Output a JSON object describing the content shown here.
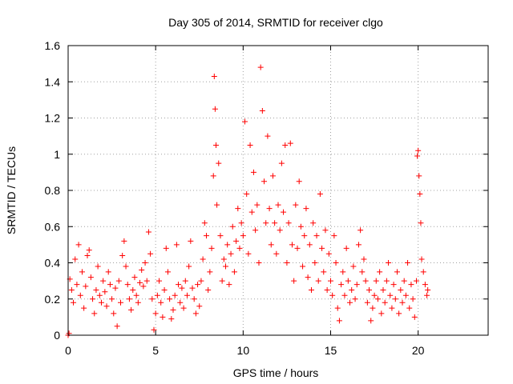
{
  "chart_data": {
    "type": "scatter",
    "title": "Day 305 of 2014, SRMTID for receiver clgo",
    "xlabel": "GPS time / hours",
    "ylabel": "SRMTID / TECUs",
    "xlim": [
      0,
      24
    ],
    "ylim": [
      0,
      1.6
    ],
    "xticks": [
      0,
      5,
      10,
      15,
      20
    ],
    "xtick_labels": [
      "0",
      "5",
      "10",
      "15",
      "20"
    ],
    "yticks": [
      0,
      0.2,
      0.4,
      0.6,
      0.8,
      1,
      1.2,
      1.4,
      1.6
    ],
    "ytick_labels": [
      "0",
      "0.2",
      "0.4",
      "0.6",
      "0.8",
      "1",
      "1.2",
      "1.4",
      "1.6"
    ],
    "grid": true,
    "marker": "plus",
    "color": "#ff0000",
    "series": [
      {
        "name": "SRMTID",
        "points": [
          [
            0.0,
            0.0
          ],
          [
            0.05,
            0.01
          ],
          [
            0.1,
            0.31
          ],
          [
            0.2,
            0.25
          ],
          [
            0.3,
            0.18
          ],
          [
            0.4,
            0.42
          ],
          [
            0.5,
            0.28
          ],
          [
            0.6,
            0.5
          ],
          [
            0.7,
            0.22
          ],
          [
            0.8,
            0.35
          ],
          [
            0.9,
            0.15
          ],
          [
            1.0,
            0.27
          ],
          [
            1.1,
            0.44
          ],
          [
            1.2,
            0.47
          ],
          [
            1.3,
            0.32
          ],
          [
            1.4,
            0.2
          ],
          [
            1.5,
            0.12
          ],
          [
            1.6,
            0.25
          ],
          [
            1.7,
            0.38
          ],
          [
            1.8,
            0.22
          ],
          [
            1.9,
            0.18
          ],
          [
            2.0,
            0.3
          ],
          [
            2.1,
            0.24
          ],
          [
            2.2,
            0.16
          ],
          [
            2.3,
            0.35
          ],
          [
            2.4,
            0.28
          ],
          [
            2.5,
            0.2
          ],
          [
            2.6,
            0.12
          ],
          [
            2.7,
            0.26
          ],
          [
            2.8,
            0.05
          ],
          [
            2.9,
            0.3
          ],
          [
            3.0,
            0.18
          ],
          [
            3.1,
            0.44
          ],
          [
            3.2,
            0.52
          ],
          [
            3.3,
            0.38
          ],
          [
            3.4,
            0.28
          ],
          [
            3.5,
            0.2
          ],
          [
            3.6,
            0.14
          ],
          [
            3.7,
            0.25
          ],
          [
            3.8,
            0.32
          ],
          [
            3.9,
            0.22
          ],
          [
            4.0,
            0.18
          ],
          [
            4.1,
            0.29
          ],
          [
            4.2,
            0.36
          ],
          [
            4.3,
            0.27
          ],
          [
            4.4,
            0.4
          ],
          [
            4.5,
            0.3
          ],
          [
            4.6,
            0.57
          ],
          [
            4.7,
            0.45
          ],
          [
            4.8,
            0.2
          ],
          [
            4.9,
            0.03
          ],
          [
            5.0,
            0.12
          ],
          [
            5.1,
            0.22
          ],
          [
            5.2,
            0.3
          ],
          [
            5.3,
            0.18
          ],
          [
            5.4,
            0.1
          ],
          [
            5.5,
            0.25
          ],
          [
            5.6,
            0.48
          ],
          [
            5.7,
            0.35
          ],
          [
            5.8,
            0.2
          ],
          [
            5.9,
            0.09
          ],
          [
            6.0,
            0.14
          ],
          [
            6.1,
            0.22
          ],
          [
            6.2,
            0.5
          ],
          [
            6.3,
            0.28
          ],
          [
            6.4,
            0.18
          ],
          [
            6.5,
            0.26
          ],
          [
            6.6,
            0.15
          ],
          [
            6.7,
            0.3
          ],
          [
            6.8,
            0.22
          ],
          [
            6.9,
            0.38
          ],
          [
            7.0,
            0.52
          ],
          [
            7.1,
            0.26
          ],
          [
            7.2,
            0.2
          ],
          [
            7.3,
            0.12
          ],
          [
            7.4,
            0.28
          ],
          [
            7.5,
            0.16
          ],
          [
            7.6,
            0.3
          ],
          [
            7.7,
            0.42
          ],
          [
            7.8,
            0.62
          ],
          [
            7.9,
            0.55
          ],
          [
            8.0,
            0.25
          ],
          [
            8.1,
            0.35
          ],
          [
            8.2,
            0.48
          ],
          [
            8.3,
            0.88
          ],
          [
            8.35,
            1.43
          ],
          [
            8.4,
            1.25
          ],
          [
            8.45,
            1.05
          ],
          [
            8.5,
            0.72
          ],
          [
            8.6,
            0.95
          ],
          [
            8.7,
            0.55
          ],
          [
            8.8,
            0.3
          ],
          [
            8.9,
            0.42
          ],
          [
            9.0,
            0.38
          ],
          [
            9.1,
            0.5
          ],
          [
            9.2,
            0.28
          ],
          [
            9.3,
            0.45
          ],
          [
            9.4,
            0.6
          ],
          [
            9.5,
            0.35
          ],
          [
            9.6,
            0.52
          ],
          [
            9.7,
            0.7
          ],
          [
            9.8,
            0.48
          ],
          [
            9.9,
            0.62
          ],
          [
            10.0,
            0.55
          ],
          [
            10.1,
            1.18
          ],
          [
            10.2,
            0.78
          ],
          [
            10.3,
            0.45
          ],
          [
            10.4,
            1.05
          ],
          [
            10.5,
            0.68
          ],
          [
            10.6,
            0.9
          ],
          [
            10.7,
            0.58
          ],
          [
            10.8,
            0.72
          ],
          [
            10.9,
            0.4
          ],
          [
            11.0,
            1.48
          ],
          [
            11.1,
            1.24
          ],
          [
            11.2,
            0.85
          ],
          [
            11.3,
            0.62
          ],
          [
            11.4,
            1.1
          ],
          [
            11.5,
            0.7
          ],
          [
            11.6,
            0.5
          ],
          [
            11.7,
            0.88
          ],
          [
            11.8,
            0.62
          ],
          [
            11.9,
            0.45
          ],
          [
            12.0,
            0.72
          ],
          [
            12.1,
            0.58
          ],
          [
            12.2,
            0.95
          ],
          [
            12.3,
            0.68
          ],
          [
            12.4,
            1.05
          ],
          [
            12.5,
            0.4
          ],
          [
            12.6,
            0.62
          ],
          [
            12.7,
            1.06
          ],
          [
            12.8,
            0.5
          ],
          [
            12.9,
            0.3
          ],
          [
            13.0,
            0.72
          ],
          [
            13.1,
            0.48
          ],
          [
            13.2,
            0.85
          ],
          [
            13.3,
            0.6
          ],
          [
            13.4,
            0.38
          ],
          [
            13.5,
            0.55
          ],
          [
            13.6,
            0.7
          ],
          [
            13.7,
            0.32
          ],
          [
            13.8,
            0.5
          ],
          [
            13.9,
            0.25
          ],
          [
            14.0,
            0.62
          ],
          [
            14.1,
            0.4
          ],
          [
            14.2,
            0.55
          ],
          [
            14.3,
            0.3
          ],
          [
            14.4,
            0.78
          ],
          [
            14.5,
            0.48
          ],
          [
            14.6,
            0.35
          ],
          [
            14.7,
            0.58
          ],
          [
            14.8,
            0.25
          ],
          [
            14.9,
            0.45
          ],
          [
            15.0,
            0.3
          ],
          [
            15.1,
            0.22
          ],
          [
            15.2,
            0.55
          ],
          [
            15.3,
            0.4
          ],
          [
            15.4,
            0.15
          ],
          [
            15.5,
            0.08
          ],
          [
            15.6,
            0.28
          ],
          [
            15.7,
            0.35
          ],
          [
            15.8,
            0.22
          ],
          [
            15.9,
            0.48
          ],
          [
            16.0,
            0.3
          ],
          [
            16.1,
            0.18
          ],
          [
            16.2,
            0.25
          ],
          [
            16.3,
            0.38
          ],
          [
            16.4,
            0.2
          ],
          [
            16.5,
            0.28
          ],
          [
            16.6,
            0.5
          ],
          [
            16.7,
            0.58
          ],
          [
            16.8,
            0.35
          ],
          [
            16.9,
            0.42
          ],
          [
            17.0,
            0.3
          ],
          [
            17.1,
            0.18
          ],
          [
            17.2,
            0.25
          ],
          [
            17.3,
            0.08
          ],
          [
            17.4,
            0.15
          ],
          [
            17.5,
            0.22
          ],
          [
            17.6,
            0.3
          ],
          [
            17.7,
            0.2
          ],
          [
            17.8,
            0.35
          ],
          [
            17.9,
            0.12
          ],
          [
            18.0,
            0.25
          ],
          [
            18.1,
            0.18
          ],
          [
            18.2,
            0.3
          ],
          [
            18.3,
            0.4
          ],
          [
            18.4,
            0.22
          ],
          [
            18.5,
            0.15
          ],
          [
            18.6,
            0.28
          ],
          [
            18.7,
            0.2
          ],
          [
            18.8,
            0.35
          ],
          [
            18.9,
            0.12
          ],
          [
            19.0,
            0.25
          ],
          [
            19.1,
            0.18
          ],
          [
            19.2,
            0.3
          ],
          [
            19.3,
            0.22
          ],
          [
            19.4,
            0.4
          ],
          [
            19.5,
            0.15
          ],
          [
            19.6,
            0.28
          ],
          [
            19.7,
            0.2
          ],
          [
            19.8,
            0.1
          ],
          [
            19.9,
            0.3
          ],
          [
            19.95,
            0.99
          ],
          [
            20.0,
            1.02
          ],
          [
            20.05,
            0.88
          ],
          [
            20.1,
            0.78
          ],
          [
            20.15,
            0.62
          ],
          [
            20.2,
            0.42
          ],
          [
            20.3,
            0.35
          ],
          [
            20.4,
            0.28
          ],
          [
            20.5,
            0.22
          ],
          [
            20.55,
            0.25
          ]
        ]
      }
    ]
  }
}
